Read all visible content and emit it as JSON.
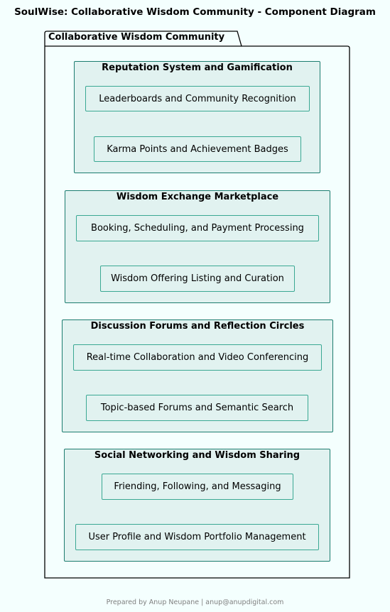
{
  "diagram_title": "SoulWise: Collaborative Wisdom Community - Component Diagram",
  "package": {
    "name": "Collaborative Wisdom Community"
  },
  "groups": [
    {
      "title": "Reputation System and Gamification",
      "components": [
        "Leaderboards and Community Recognition",
        "Karma Points and Achievement Badges"
      ]
    },
    {
      "title": "Wisdom Exchange Marketplace",
      "components": [
        "Booking, Scheduling, and Payment Processing",
        "Wisdom Offering Listing and Curation"
      ]
    },
    {
      "title": "Discussion Forums and Reflection Circles",
      "components": [
        "Real-time Collaboration and Video Conferencing",
        "Topic-based Forums and Semantic Search"
      ]
    },
    {
      "title": "Social Networking and Wisdom Sharing",
      "components": [
        "Friending, Following, and Messaging",
        "User Profile and Wisdom Portfolio Management"
      ]
    }
  ],
  "footer": "Prepared by Anup Neupane | anup@anupdigital.com",
  "colors": {
    "background": "#f4fffe",
    "group_fill": "#e1f2f0",
    "group_border": "#1c7c6f",
    "component_border": "#3aa893",
    "footer_text": "#808080"
  }
}
